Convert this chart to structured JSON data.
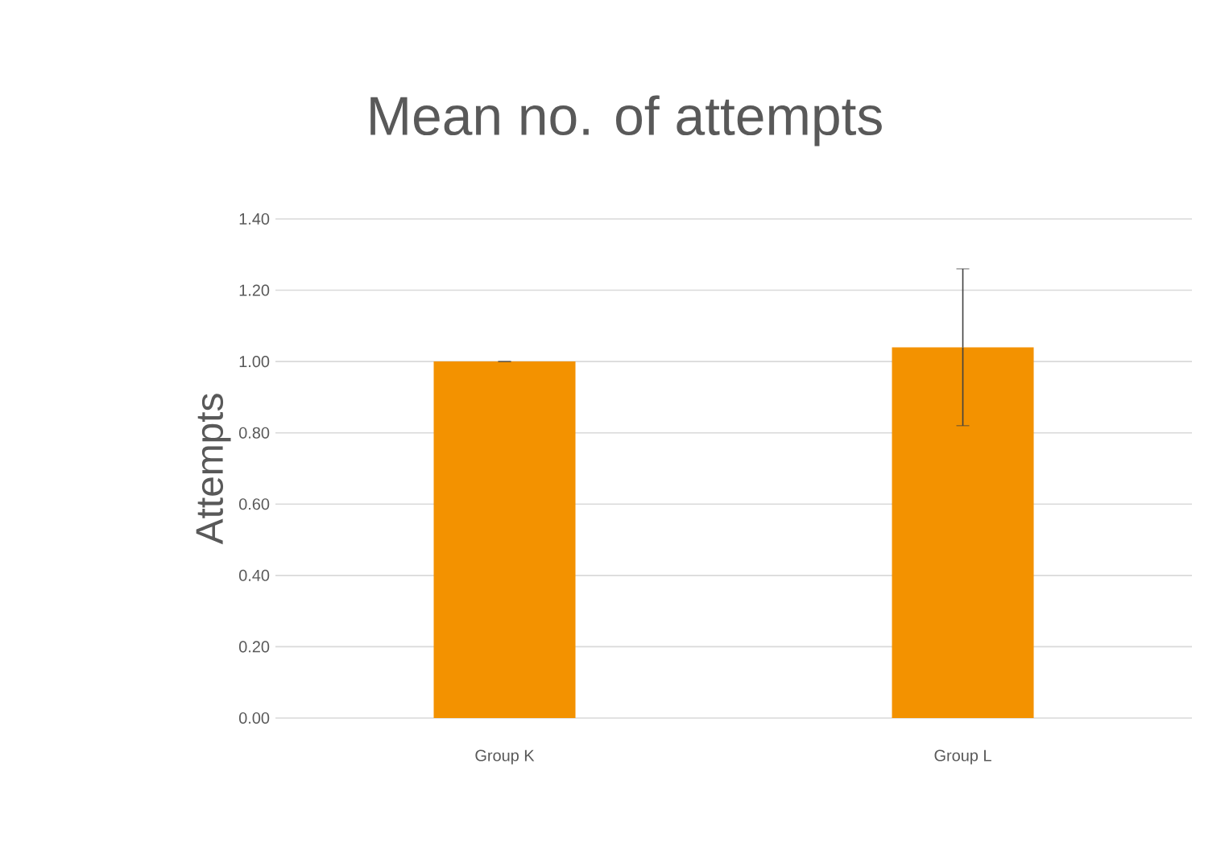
{
  "chart_data": {
    "type": "bar",
    "title": "Mean no. of attempts",
    "ylabel": "Attempts",
    "categories": [
      "Group K",
      "Group L"
    ],
    "values": [
      1.0,
      1.04
    ],
    "errors": [
      0,
      0.22
    ],
    "color": "#f39200",
    "ylim": [
      0,
      1.4
    ],
    "yticks": [
      {
        "value": 0,
        "label": "0.00"
      },
      {
        "value": 0.2,
        "label": "0.20"
      },
      {
        "value": 0.4,
        "label": "0.40"
      },
      {
        "value": 0.6,
        "label": "0.60"
      },
      {
        "value": 0.8,
        "label": "0.80"
      },
      {
        "value": 1.0,
        "label": "1.00"
      },
      {
        "value": 1.2,
        "label": "1.20"
      },
      {
        "value": 1.4,
        "label": "1.40"
      }
    ],
    "grid": "y"
  }
}
